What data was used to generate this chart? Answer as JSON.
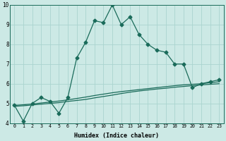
{
  "xlabel": "Humidex (Indice chaleur)",
  "x": [
    0,
    1,
    2,
    3,
    4,
    5,
    6,
    7,
    8,
    9,
    10,
    11,
    12,
    13,
    14,
    15,
    16,
    17,
    18,
    19,
    20,
    21,
    22,
    23
  ],
  "y_main": [
    4.9,
    4.1,
    5.0,
    5.3,
    5.1,
    4.5,
    5.3,
    7.3,
    8.1,
    9.2,
    9.1,
    10.0,
    9.0,
    9.4,
    8.5,
    8.0,
    7.7,
    7.6,
    7.0,
    7.0,
    5.8,
    6.0,
    6.1,
    6.2
  ],
  "y_line1": [
    4.85,
    4.88,
    4.92,
    4.96,
    5.0,
    5.04,
    5.1,
    5.15,
    5.2,
    5.28,
    5.35,
    5.42,
    5.5,
    5.57,
    5.63,
    5.68,
    5.73,
    5.77,
    5.82,
    5.86,
    5.9,
    5.94,
    5.97,
    6.0
  ],
  "y_line2": [
    4.9,
    4.93,
    4.97,
    5.02,
    5.07,
    5.12,
    5.18,
    5.25,
    5.32,
    5.4,
    5.47,
    5.54,
    5.6,
    5.65,
    5.7,
    5.75,
    5.8,
    5.85,
    5.9,
    5.94,
    5.97,
    6.0,
    6.05,
    6.1
  ],
  "ylim": [
    4,
    10
  ],
  "xlim": [
    -0.5,
    23.5
  ],
  "bg_color": "#cce9e5",
  "line_color": "#1a6b5a",
  "grid_color": "#aad4cf",
  "marker": "D",
  "marker_size": 2.5,
  "linewidth": 0.9
}
